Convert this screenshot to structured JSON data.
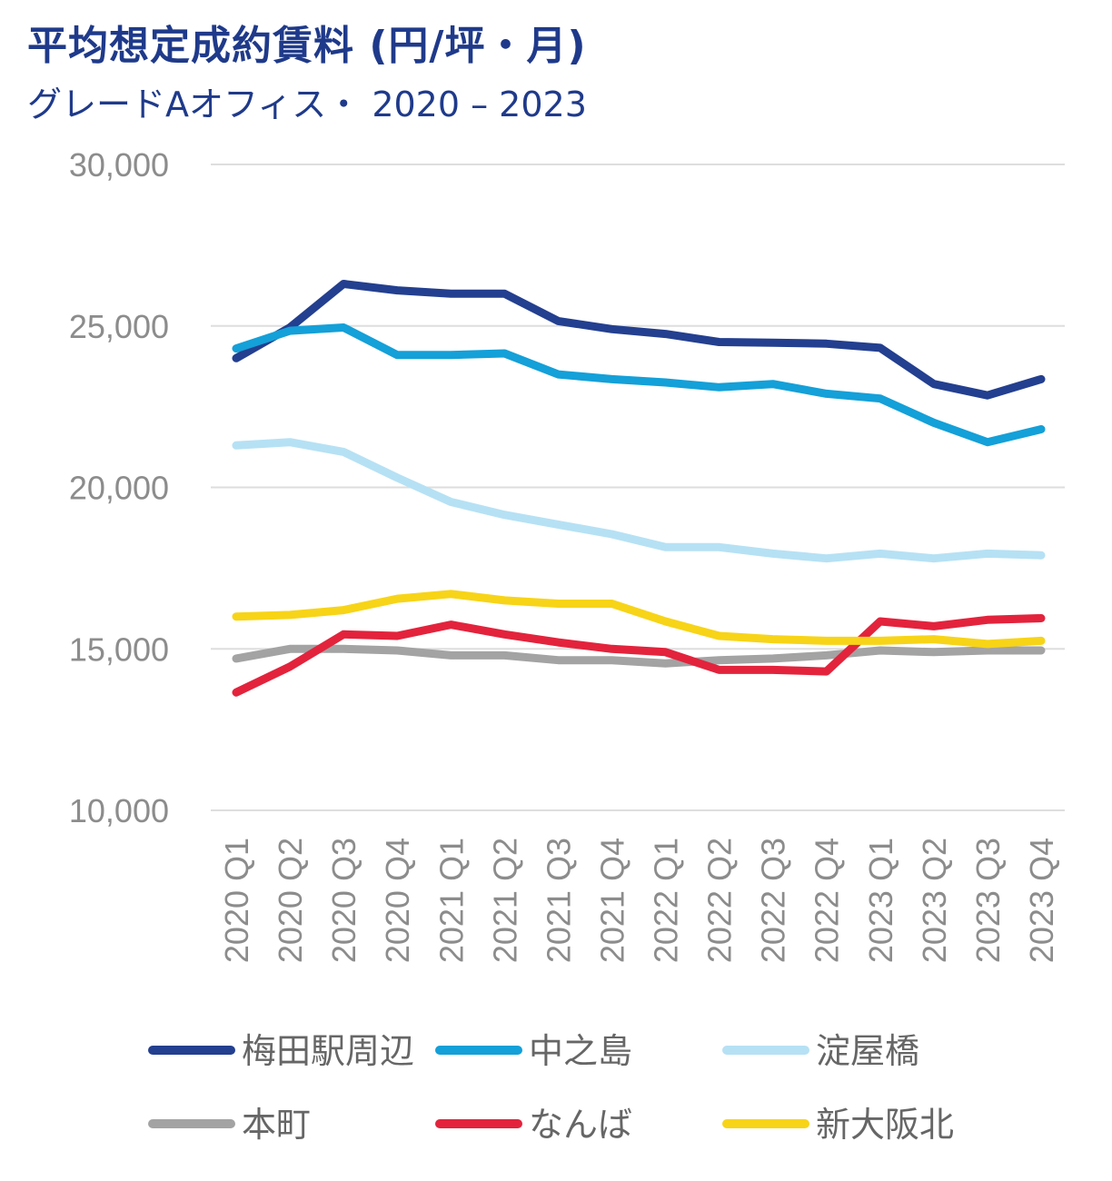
{
  "chart_data": {
    "type": "line",
    "title": "平均想定成約賃料 (円/坪・月)",
    "subtitle": "グレードAオフィス・ 2020 – 2023",
    "ylim": [
      10000,
      30000
    ],
    "yticks": [
      10000,
      15000,
      20000,
      25000,
      30000
    ],
    "ytick_labels": [
      "10,000",
      "15,000",
      "20,000",
      "25,000",
      "30,000"
    ],
    "grid": true,
    "legend_position": "bottom",
    "categories": [
      "2020 Q1",
      "2020 Q2",
      "2020 Q3",
      "2020 Q4",
      "2021 Q1",
      "2021 Q2",
      "2021 Q3",
      "2021 Q4",
      "2022 Q1",
      "2022 Q2",
      "2022 Q3",
      "2022 Q4",
      "2023 Q1",
      "2023 Q2",
      "2023 Q3",
      "2023 Q4"
    ],
    "series": [
      {
        "name": "梅田駅周辺",
        "color": "#233f8f",
        "values": [
          24000,
          24950,
          26300,
          26100,
          26000,
          26000,
          25150,
          24900,
          24750,
          24500,
          24480,
          24450,
          24320,
          23200,
          22850,
          23350
        ]
      },
      {
        "name": "中之島",
        "color": "#14a0d8",
        "values": [
          24300,
          24850,
          24950,
          24100,
          24100,
          24150,
          23500,
          23350,
          23250,
          23100,
          23200,
          22900,
          22750,
          22000,
          21400,
          21800
        ]
      },
      {
        "name": "淀屋橋",
        "color": "#b6e1f4",
        "values": [
          21300,
          21400,
          21100,
          20300,
          19550,
          19150,
          18850,
          18550,
          18150,
          18150,
          17950,
          17800,
          17950,
          17800,
          17950,
          17900
        ]
      },
      {
        "name": "本町",
        "color": "#a3a3a3",
        "values": [
          14700,
          15000,
          15000,
          14950,
          14800,
          14800,
          14650,
          14650,
          14550,
          14650,
          14700,
          14800,
          14950,
          14900,
          14950,
          14950
        ]
      },
      {
        "name": "なんば",
        "color": "#e3233c",
        "values": [
          13650,
          14450,
          15450,
          15400,
          15750,
          15450,
          15200,
          15000,
          14900,
          14350,
          14350,
          14300,
          15850,
          15700,
          15900,
          15950
        ]
      },
      {
        "name": "新大阪北",
        "color": "#f7d417",
        "values": [
          16000,
          16050,
          16200,
          16550,
          16700,
          16500,
          16400,
          16400,
          15850,
          15400,
          15300,
          15250,
          15250,
          15300,
          15150,
          15250
        ]
      }
    ]
  }
}
